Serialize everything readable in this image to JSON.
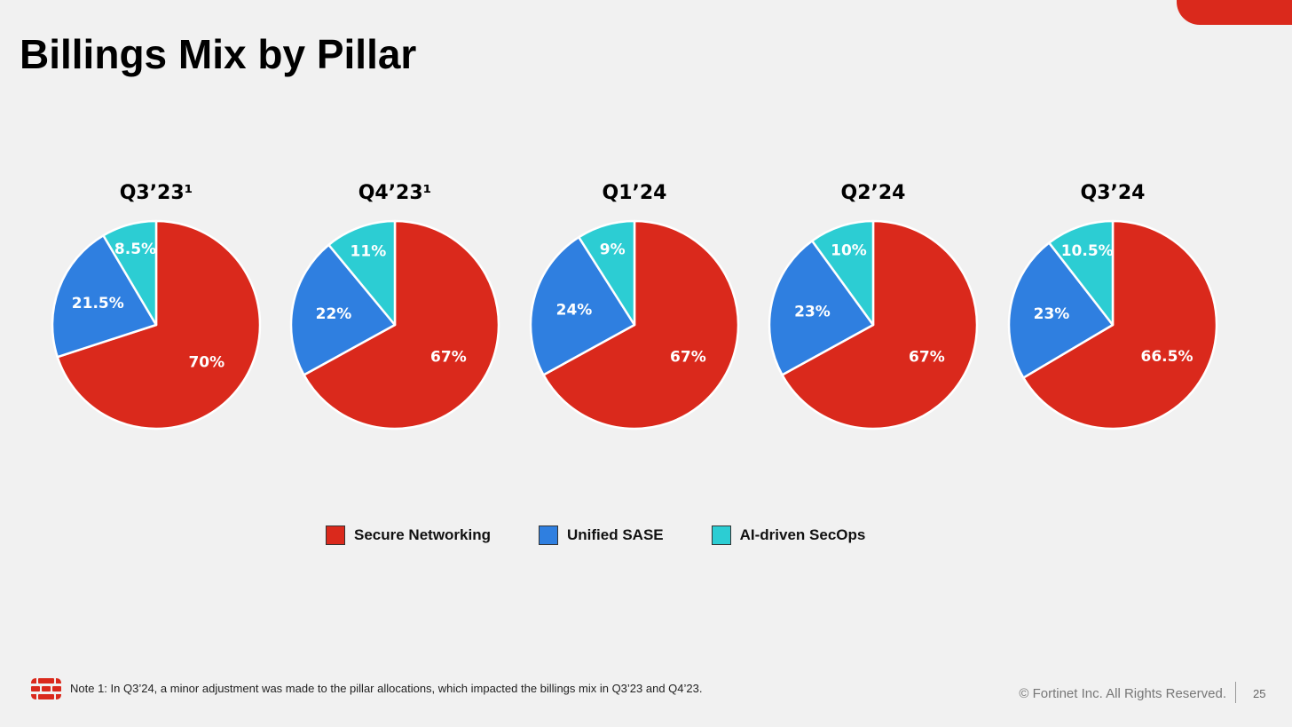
{
  "slide": {
    "title": "Billings Mix by Pillar",
    "accent_color": "#da291c",
    "footnote": "Note 1: In Q3’24, a minor adjustment was made to the pillar allocations, which impacted the billings mix in Q3’23 and Q4’23.",
    "copyright": "© Fortinet Inc. All Rights Reserved.",
    "page_number": "25",
    "logo_icon": "fortinet-logo-icon"
  },
  "legend": [
    {
      "name": "Secure Networking",
      "color": "#da291c"
    },
    {
      "name": "Unified SASE",
      "color": "#2f7fe0"
    },
    {
      "name": "AI-driven SecOps",
      "color": "#2ccdd3"
    }
  ],
  "chart_data": [
    {
      "type": "pie",
      "title": "Q3’23¹",
      "categories": [
        "Secure Networking",
        "Unified SASE",
        "AI-driven SecOps"
      ],
      "values": [
        70,
        21.5,
        8.5
      ],
      "labels": [
        "70%",
        "21.5%",
        "8.5%"
      ]
    },
    {
      "type": "pie",
      "title": "Q4’23¹",
      "categories": [
        "Secure Networking",
        "Unified SASE",
        "AI-driven SecOps"
      ],
      "values": [
        67,
        22,
        11
      ],
      "labels": [
        "67%",
        "22%",
        "11%"
      ]
    },
    {
      "type": "pie",
      "title": "Q1’24",
      "categories": [
        "Secure Networking",
        "Unified SASE",
        "AI-driven SecOps"
      ],
      "values": [
        67,
        24,
        9
      ],
      "labels": [
        "67%",
        "24%",
        "9%"
      ]
    },
    {
      "type": "pie",
      "title": "Q2’24",
      "categories": [
        "Secure Networking",
        "Unified SASE",
        "AI-driven SecOps"
      ],
      "values": [
        67,
        23,
        10
      ],
      "labels": [
        "67%",
        "23%",
        "10%"
      ]
    },
    {
      "type": "pie",
      "title": "Q3’24",
      "categories": [
        "Secure Networking",
        "Unified SASE",
        "AI-driven SecOps"
      ],
      "values": [
        66.5,
        23,
        10.5
      ],
      "labels": [
        "66.5%",
        "23%",
        "10.5%"
      ]
    }
  ]
}
